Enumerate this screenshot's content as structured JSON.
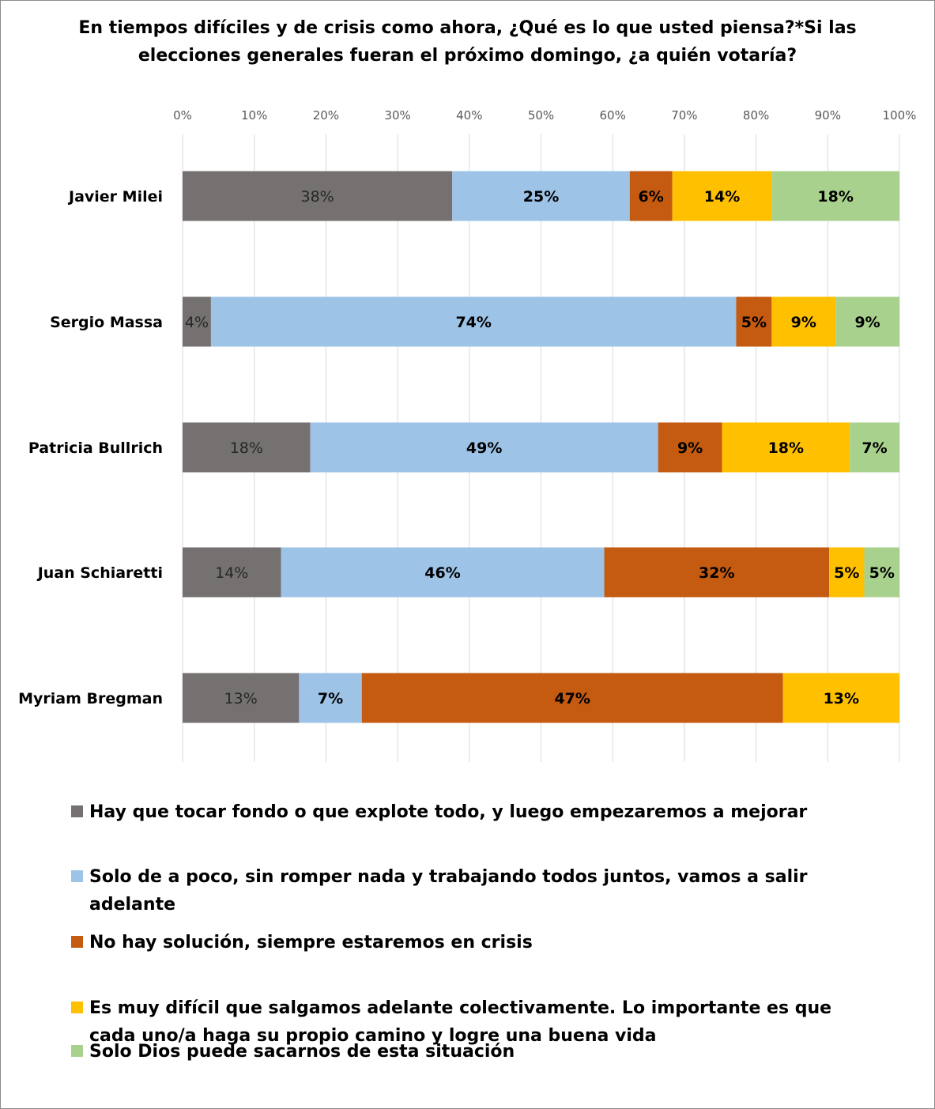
{
  "chart_data": {
    "type": "bar",
    "orientation": "horizontal",
    "stacked": "percent",
    "title": "En tiempos difíciles y de crisis como ahora, ¿Qué es lo que usted piensa?*Si las elecciones generales fueran el próximo domingo, ¿a quién votaría?",
    "xlim": [
      0,
      100
    ],
    "x_ticks": [
      "0%",
      "10%",
      "20%",
      "30%",
      "40%",
      "50%",
      "60%",
      "70%",
      "80%",
      "90%",
      "100%"
    ],
    "grid": true,
    "legend_position": "bottom",
    "categories": [
      "Javier Milei",
      "Sergio Massa",
      "Patricia Bullrich",
      "Juan Schiaretti",
      "Myriam Bregman"
    ],
    "series": [
      {
        "name": "Hay que tocar fondo o que explote todo, y luego empezaremos a mejorar",
        "color": "#767171",
        "values": [
          38,
          4,
          18,
          14,
          13
        ],
        "labels": [
          "38%",
          "4%",
          "18%",
          "14%",
          "13%"
        ]
      },
      {
        "name": "Solo de a poco, sin romper nada y trabajando todos juntos, vamos a salir adelante",
        "color": "#9dc3e6",
        "values": [
          25,
          74,
          49,
          46,
          7
        ],
        "labels": [
          "25%",
          "74%",
          "49%",
          "46%",
          "7%"
        ]
      },
      {
        "name": "No hay solución, siempre estaremos en crisis",
        "color": "#c55a11",
        "values": [
          6,
          5,
          9,
          32,
          47
        ],
        "labels": [
          "6%",
          "5%",
          "9%",
          "32%",
          "47%"
        ]
      },
      {
        "name": "Es muy difícil que salgamos adelante colectivamente. Lo importante es que cada uno/a haga su propio camino y logre una buena vida",
        "color": "#ffc000",
        "values": [
          14,
          9,
          18,
          5,
          13
        ],
        "labels": [
          "14%",
          "9%",
          "18%",
          "5%",
          "13%"
        ]
      },
      {
        "name": "Solo Dios puede sacarnos de esta situación",
        "color": "#a9d18e",
        "values": [
          18,
          9,
          7,
          5,
          0
        ],
        "labels": [
          "18%",
          "9%",
          "7%",
          "5%",
          ""
        ]
      }
    ]
  }
}
